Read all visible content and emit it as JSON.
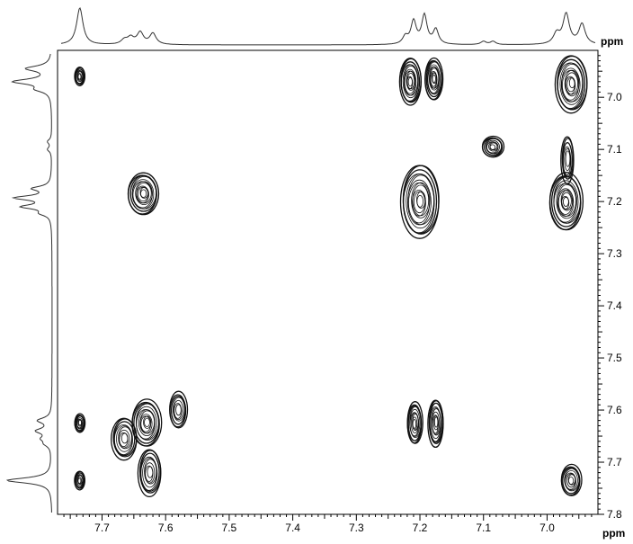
{
  "chart_data": {
    "type": "contour",
    "x_unit": "ppm",
    "y_unit": "ppm",
    "xlim": [
      7.77,
      6.92
    ],
    "ylim": [
      6.91,
      7.8
    ],
    "x_major_ticks": [
      7.7,
      7.6,
      7.5,
      7.4,
      7.3,
      7.2,
      7.1,
      7.0
    ],
    "y_major_ticks": [
      7.0,
      7.1,
      7.2,
      7.3,
      7.4,
      7.5,
      7.6,
      7.7,
      7.8
    ],
    "x_tick_labels": [
      "7.7",
      "7.6",
      "7.5",
      "7.4",
      "7.3",
      "7.2",
      "7.1",
      "7.0"
    ],
    "y_tick_labels": [
      "7.0",
      "7.1",
      "7.2",
      "7.3",
      "7.4",
      "7.5",
      "7.6",
      "7.7",
      "7.8"
    ],
    "projection_peaks": [
      {
        "ppm": 7.735,
        "height": 1.0,
        "width": 0.006
      },
      {
        "ppm": 7.665,
        "height": 0.12,
        "width": 0.006
      },
      {
        "ppm": 7.655,
        "height": 0.18,
        "width": 0.006
      },
      {
        "ppm": 7.64,
        "height": 0.32,
        "width": 0.006
      },
      {
        "ppm": 7.62,
        "height": 0.3,
        "width": 0.006
      },
      {
        "ppm": 7.21,
        "height": 0.62,
        "width": 0.005
      },
      {
        "ppm": 7.193,
        "height": 0.78,
        "width": 0.005
      },
      {
        "ppm": 7.175,
        "height": 0.4,
        "width": 0.005
      },
      {
        "ppm": 7.223,
        "height": 0.2,
        "width": 0.005
      },
      {
        "ppm": 7.1,
        "height": 0.09,
        "width": 0.005
      },
      {
        "ppm": 7.085,
        "height": 0.09,
        "width": 0.005
      },
      {
        "ppm": 6.985,
        "height": 0.28,
        "width": 0.006
      },
      {
        "ppm": 6.97,
        "height": 0.82,
        "width": 0.006
      },
      {
        "ppm": 6.945,
        "height": 0.55,
        "width": 0.006
      }
    ],
    "cross_peaks": [
      {
        "x": 7.735,
        "y": 6.96,
        "rx": 0.008,
        "ry": 0.018,
        "levels": 8
      },
      {
        "x": 7.635,
        "y": 7.185,
        "rx": 0.024,
        "ry": 0.04,
        "levels": 12
      },
      {
        "x": 7.215,
        "y": 6.97,
        "rx": 0.017,
        "ry": 0.045,
        "levels": 12
      },
      {
        "x": 7.178,
        "y": 6.965,
        "rx": 0.014,
        "ry": 0.04,
        "levels": 12
      },
      {
        "x": 6.962,
        "y": 6.975,
        "rx": 0.025,
        "ry": 0.055,
        "levels": 13
      },
      {
        "x": 7.085,
        "y": 7.095,
        "rx": 0.017,
        "ry": 0.02,
        "levels": 9
      },
      {
        "x": 7.2,
        "y": 7.2,
        "rx": 0.03,
        "ry": 0.07,
        "levels": 14
      },
      {
        "x": 6.97,
        "y": 7.2,
        "rx": 0.026,
        "ry": 0.055,
        "levels": 14
      },
      {
        "x": 6.968,
        "y": 7.12,
        "rx": 0.01,
        "ry": 0.045,
        "levels": 6
      },
      {
        "x": 7.735,
        "y": 7.625,
        "rx": 0.008,
        "ry": 0.018,
        "levels": 8
      },
      {
        "x": 7.735,
        "y": 7.735,
        "rx": 0.008,
        "ry": 0.018,
        "levels": 8
      },
      {
        "x": 7.63,
        "y": 7.625,
        "rx": 0.023,
        "ry": 0.045,
        "levels": 12
      },
      {
        "x": 7.665,
        "y": 7.655,
        "rx": 0.02,
        "ry": 0.04,
        "levels": 9
      },
      {
        "x": 7.58,
        "y": 7.6,
        "rx": 0.014,
        "ry": 0.035,
        "levels": 7
      },
      {
        "x": 7.625,
        "y": 7.72,
        "rx": 0.018,
        "ry": 0.045,
        "levels": 9
      },
      {
        "x": 7.208,
        "y": 7.625,
        "rx": 0.012,
        "ry": 0.04,
        "levels": 10
      },
      {
        "x": 7.175,
        "y": 7.625,
        "rx": 0.012,
        "ry": 0.045,
        "levels": 10
      },
      {
        "x": 6.962,
        "y": 7.735,
        "rx": 0.016,
        "ry": 0.03,
        "levels": 9
      }
    ]
  }
}
